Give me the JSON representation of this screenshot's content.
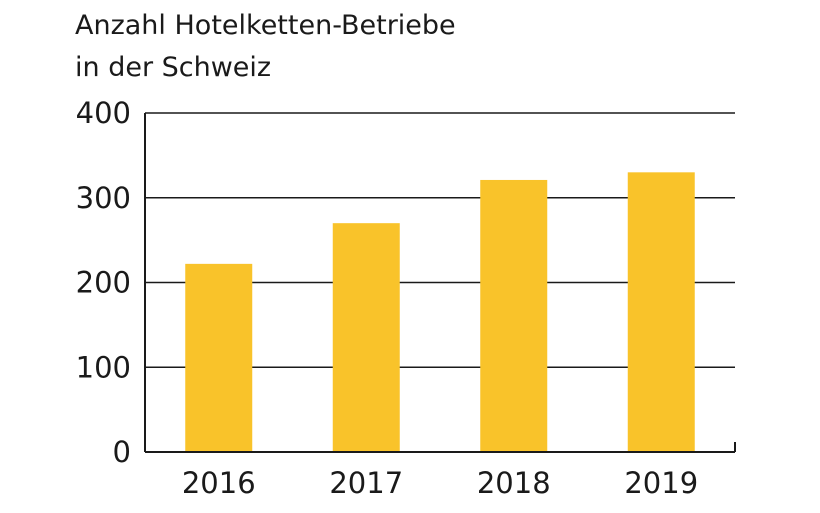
{
  "chart_data": {
    "type": "bar",
    "title": [
      "Anzahl Hotelketten-Betriebe",
      "in der Schweiz"
    ],
    "categories": [
      "2016",
      "2017",
      "2018",
      "2019"
    ],
    "values": [
      222,
      270,
      321,
      330
    ],
    "ylim": [
      0,
      400
    ],
    "yticks": [
      "0",
      "100",
      "200",
      "300",
      "400"
    ],
    "grid": true,
    "xlabel": "",
    "ylabel": "",
    "bar_color": "#F9C32A",
    "axis_color": "#1a1a1a"
  }
}
